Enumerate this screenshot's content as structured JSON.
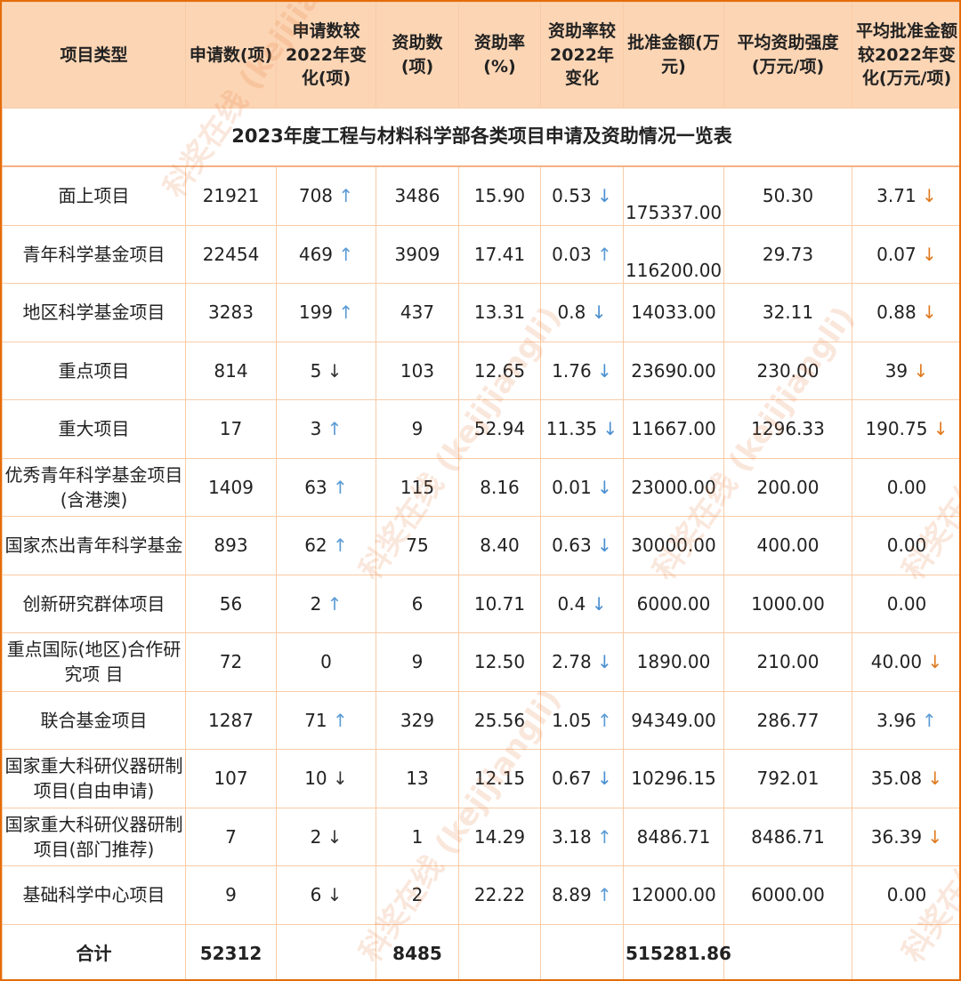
{
  "title": "2023年度工程与材料科学部各类项目申请及资助情况一览表",
  "headers": [
    "项目类型",
    "申请数(项)",
    "申请数较2022年变化(项)",
    "资助数(项)",
    "资助率(%)",
    "资助率较2022年变化",
    "批准金额(万元)",
    "平均资助强度(万元/项)",
    "平均批准金额较2022年变化(万元/项)"
  ],
  "rows": [
    {
      "type": "面上项目",
      "apply": "21921",
      "apply_chg": "708",
      "apply_dir": "up",
      "funded": "3486",
      "rate": "15.90",
      "rate_chg": "0.53",
      "rate_dir": "down",
      "amount": "175337.00",
      "avg": "50.30",
      "avg_chg": "3.71",
      "avg_dir": "down"
    },
    {
      "type": "青年科学基金项目",
      "apply": "22454",
      "apply_chg": "469",
      "apply_dir": "up",
      "funded": "3909",
      "rate": "17.41",
      "rate_chg": "0.03",
      "rate_dir": "up",
      "amount": "116200.00",
      "avg": "29.73",
      "avg_chg": "0.07",
      "avg_dir": "down"
    },
    {
      "type": "地区科学基金项目",
      "apply": "3283",
      "apply_chg": "199",
      "apply_dir": "up",
      "funded": "437",
      "rate": "13.31",
      "rate_chg": "0.8",
      "rate_dir": "down",
      "amount": "14033.00",
      "avg": "32.11",
      "avg_chg": "0.88",
      "avg_dir": "down"
    },
    {
      "type": "重点项目",
      "apply": "814",
      "apply_chg": "5",
      "apply_dir": "down",
      "funded": "103",
      "rate": "12.65",
      "rate_chg": "1.76",
      "rate_dir": "down",
      "amount": "23690.00",
      "avg": "230.00",
      "avg_chg": "39",
      "avg_dir": "down"
    },
    {
      "type": "重大项目",
      "apply": "17",
      "apply_chg": "3",
      "apply_dir": "up",
      "funded": "9",
      "rate": "52.94",
      "rate_chg": "11.35",
      "rate_dir": "down",
      "amount": "11667.00",
      "avg": "1296.33",
      "avg_chg": "190.75",
      "avg_dir": "down"
    },
    {
      "type": "优秀青年科学基金项目(含港澳)",
      "apply": "1409",
      "apply_chg": "63",
      "apply_dir": "up",
      "funded": "115",
      "rate": "8.16",
      "rate_chg": "0.01",
      "rate_dir": "down",
      "amount": "23000.00",
      "avg": "200.00",
      "avg_chg": "0.00",
      "avg_dir": ""
    },
    {
      "type": "国家杰出青年科学基金",
      "apply": "893",
      "apply_chg": "62",
      "apply_dir": "up",
      "funded": "75",
      "rate": "8.40",
      "rate_chg": "0.63",
      "rate_dir": "down",
      "amount": "30000.00",
      "avg": "400.00",
      "avg_chg": "0.00",
      "avg_dir": ""
    },
    {
      "type": "创新研究群体项目",
      "apply": "56",
      "apply_chg": "2",
      "apply_dir": "up",
      "funded": "6",
      "rate": "10.71",
      "rate_chg": "0.4",
      "rate_dir": "down",
      "amount": "6000.00",
      "avg": "1000.00",
      "avg_chg": "0.00",
      "avg_dir": ""
    },
    {
      "type": "重点国际(地区)合作研究项 目",
      "apply": "72",
      "apply_chg": "0",
      "apply_dir": "",
      "funded": "9",
      "rate": "12.50",
      "rate_chg": "2.78",
      "rate_dir": "down",
      "amount": "1890.00",
      "avg": "210.00",
      "avg_chg": "40.00",
      "avg_dir": "down"
    },
    {
      "type": "联合基金项目",
      "apply": "1287",
      "apply_chg": "71",
      "apply_dir": "up",
      "funded": "329",
      "rate": "25.56",
      "rate_chg": "1.05",
      "rate_dir": "up",
      "amount": "94349.00",
      "avg": "286.77",
      "avg_chg": "3.96",
      "avg_dir": "up"
    },
    {
      "type": "国家重大科研仪器研制项目(自由申请)",
      "apply": "107",
      "apply_chg": "10",
      "apply_dir": "down",
      "funded": "13",
      "rate": "12.15",
      "rate_chg": "0.67",
      "rate_dir": "down",
      "amount": "10296.15",
      "avg": "792.01",
      "avg_chg": "35.08",
      "avg_dir": "down"
    },
    {
      "type": "国家重大科研仪器研制项目(部门推荐)",
      "apply": "7",
      "apply_chg": "2",
      "apply_dir": "down",
      "funded": "1",
      "rate": "14.29",
      "rate_chg": "3.18",
      "rate_dir": "up",
      "amount": "8486.71",
      "avg": "8486.71",
      "avg_chg": "36.39",
      "avg_dir": "down"
    },
    {
      "type": "基础科学中心项目",
      "apply": "9",
      "apply_chg": "6",
      "apply_dir": "down",
      "funded": "2",
      "rate": "22.22",
      "rate_chg": "8.89",
      "rate_dir": "up",
      "amount": "12000.00",
      "avg": "6000.00",
      "avg_chg": "0.00",
      "avg_dir": ""
    }
  ],
  "total": {
    "label": "合计",
    "apply": "52312",
    "funded": "8485",
    "amount": "515281.86"
  },
  "watermark": "科奖在线 (kejijiangli)",
  "colors": {
    "header_bg": "#fcd5b4",
    "border": "#e46c0a",
    "up_arrow": "#5b9bd5"
  }
}
